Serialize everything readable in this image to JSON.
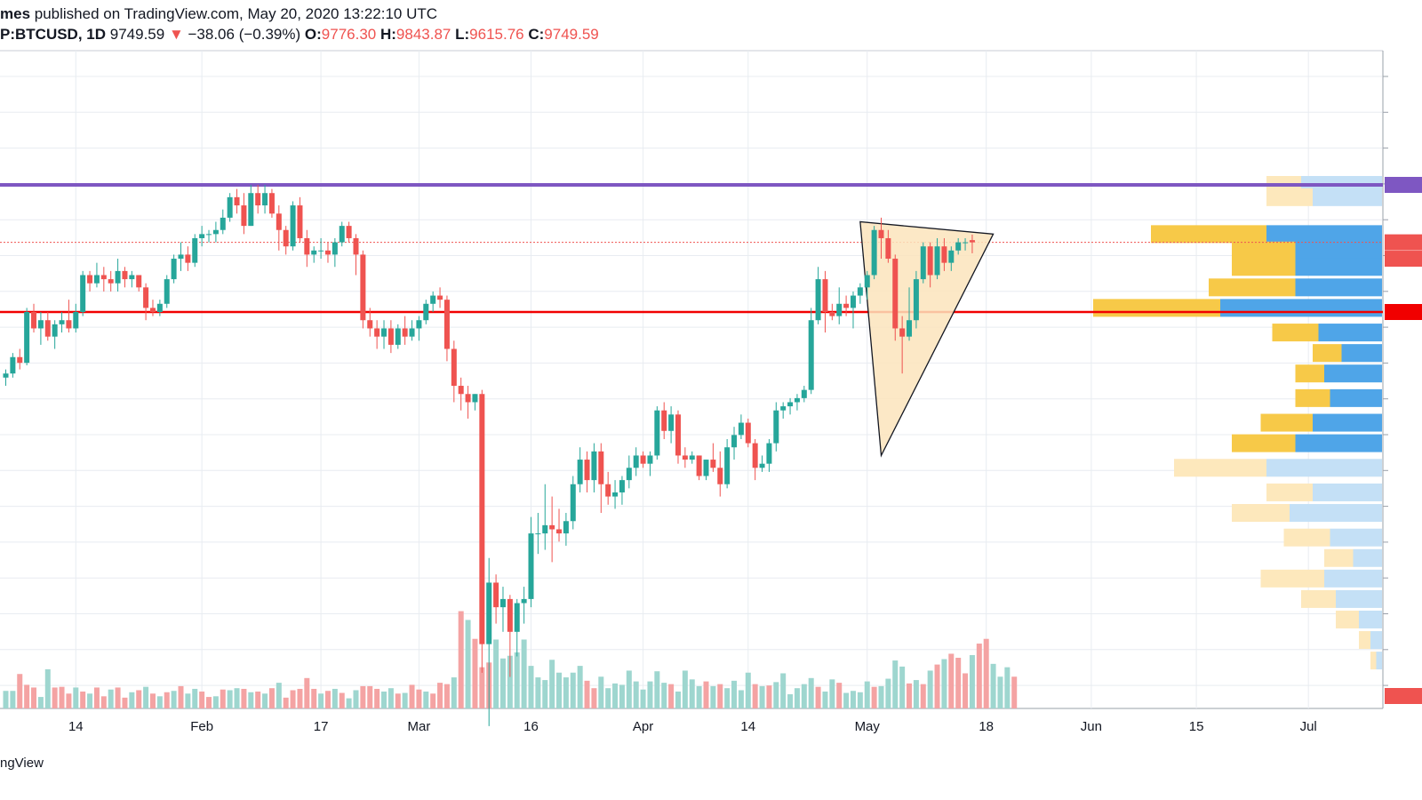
{
  "header": {
    "publisher_suffix": "mes",
    "published_text": " published on TradingView.com, May 20, 2020 13:22:10 UTC",
    "symbol_interval": "P:BTCUSD, 1D",
    "last_price": "9749.59",
    "change_arrow": "▼",
    "change": "−38.06 (−0.39%)",
    "open_label": "O:",
    "open": "9776.30",
    "high_label": "H:",
    "high": "9843.87",
    "low_label": "L:",
    "low": "9615.76",
    "close_label": "C:",
    "close": "9749.59"
  },
  "footer": {
    "brand": "ngView"
  },
  "colors": {
    "up": "#26a69a",
    "down": "#ef5350",
    "vol_up": "#9ed6cf",
    "vol_down": "#f4a3a3",
    "resistance": "#7e57c2",
    "support": "#f10000",
    "triangle_fill": "#fbe4bc",
    "grid": "#e8ecf1",
    "vp_up": "#f7c948",
    "vp_down": "#4fa5e8",
    "vp_up_light": "#fde8bc",
    "vp_down_light": "#c4e0f6"
  },
  "chart_data": {
    "type": "candlestick",
    "symbol": "BTCUSD",
    "interval": "1D",
    "x_tick_labels": [
      "14",
      "Feb",
      "17",
      "Mar",
      "16",
      "Apr",
      "14",
      "May",
      "18",
      "Jun",
      "15",
      "Jul"
    ],
    "y_range_approx": [
      3800,
      10600
    ],
    "grid": true,
    "candles_ohlc": [
      [
        8100,
        8200,
        8000,
        8150
      ],
      [
        8150,
        8400,
        8100,
        8350
      ],
      [
        8350,
        8450,
        8200,
        8280
      ],
      [
        8280,
        8950,
        8250,
        8900
      ],
      [
        8900,
        9000,
        8650,
        8700
      ],
      [
        8700,
        8900,
        8500,
        8800
      ],
      [
        8800,
        8900,
        8550,
        8600
      ],
      [
        8600,
        8800,
        8450,
        8750
      ],
      [
        8750,
        8900,
        8650,
        8800
      ],
      [
        8800,
        9050,
        8650,
        8700
      ],
      [
        8700,
        9000,
        8650,
        8900
      ],
      [
        8900,
        9400,
        8850,
        9350
      ],
      [
        9350,
        9400,
        9150,
        9250
      ],
      [
        9250,
        9500,
        9200,
        9350
      ],
      [
        9350,
        9450,
        9150,
        9300
      ],
      [
        9300,
        9400,
        9150,
        9250
      ],
      [
        9250,
        9550,
        9150,
        9400
      ],
      [
        9400,
        9450,
        9200,
        9300
      ],
      [
        9300,
        9400,
        9200,
        9350
      ],
      [
        9350,
        9350,
        9150,
        9200
      ],
      [
        9200,
        9250,
        8800,
        8950
      ],
      [
        8950,
        9050,
        8850,
        8900
      ],
      [
        8900,
        9050,
        8850,
        9000
      ],
      [
        9000,
        9350,
        8950,
        9300
      ],
      [
        9300,
        9600,
        9250,
        9550
      ],
      [
        9550,
        9750,
        9400,
        9600
      ],
      [
        9600,
        9700,
        9400,
        9500
      ],
      [
        9500,
        9850,
        9450,
        9800
      ],
      [
        9800,
        9950,
        9700,
        9850
      ],
      [
        9850,
        9900,
        9750,
        9850
      ],
      [
        9850,
        10000,
        9750,
        9900
      ],
      [
        9900,
        10150,
        9850,
        10050
      ],
      [
        10050,
        10350,
        10000,
        10300
      ],
      [
        10300,
        10400,
        10100,
        10200
      ],
      [
        10200,
        10350,
        9850,
        9950
      ],
      [
        9950,
        10450,
        9950,
        10350
      ],
      [
        10350,
        10450,
        10100,
        10200
      ],
      [
        10200,
        10450,
        10100,
        10350
      ],
      [
        10350,
        10400,
        10050,
        10100
      ],
      [
        10100,
        10200,
        9650,
        9900
      ],
      [
        9900,
        9950,
        9600,
        9700
      ],
      [
        9700,
        10250,
        9650,
        10200
      ],
      [
        10200,
        10300,
        9750,
        9800
      ],
      [
        9800,
        9900,
        9450,
        9600
      ],
      [
        9600,
        9700,
        9500,
        9650
      ],
      [
        9650,
        9800,
        9550,
        9650
      ],
      [
        9650,
        9750,
        9500,
        9600
      ],
      [
        9600,
        9800,
        9450,
        9750
      ],
      [
        9750,
        10000,
        9700,
        9950
      ],
      [
        9950,
        10000,
        9750,
        9800
      ],
      [
        9800,
        9850,
        9350,
        9600
      ],
      [
        9600,
        9650,
        8700,
        8800
      ],
      [
        8800,
        8950,
        8600,
        8700
      ],
      [
        8700,
        8800,
        8450,
        8600
      ],
      [
        8600,
        8800,
        8450,
        8700
      ],
      [
        8700,
        8800,
        8400,
        8500
      ],
      [
        8500,
        8750,
        8450,
        8700
      ],
      [
        8700,
        8850,
        8500,
        8600
      ],
      [
        8600,
        8800,
        8550,
        8700
      ],
      [
        8700,
        8850,
        8550,
        8800
      ],
      [
        8800,
        9050,
        8750,
        9000
      ],
      [
        9000,
        9150,
        8900,
        9100
      ],
      [
        9100,
        9200,
        8950,
        9050
      ],
      [
        9050,
        9100,
        8300,
        8450
      ],
      [
        8450,
        8550,
        7800,
        8000
      ],
      [
        8000,
        8100,
        7700,
        7900
      ],
      [
        7900,
        8000,
        7600,
        7800
      ],
      [
        7800,
        7900,
        7700,
        7900
      ],
      [
        7900,
        7950,
        4500,
        4850
      ],
      [
        4850,
        5900,
        3850,
        5600
      ],
      [
        5600,
        5700,
        5100,
        5300
      ],
      [
        5300,
        5550,
        5000,
        5400
      ],
      [
        5400,
        5450,
        4450,
        5000
      ],
      [
        5000,
        5400,
        4700,
        5350
      ],
      [
        5350,
        5550,
        5100,
        5400
      ],
      [
        5400,
        6400,
        5300,
        6200
      ],
      [
        6200,
        6450,
        5950,
        6200
      ],
      [
        6200,
        6800,
        6000,
        6300
      ],
      [
        6300,
        6650,
        5850,
        6250
      ],
      [
        6250,
        6500,
        6100,
        6200
      ],
      [
        6200,
        6450,
        6050,
        6350
      ],
      [
        6350,
        6900,
        6250,
        6800
      ],
      [
        6800,
        7250,
        6700,
        7100
      ],
      [
        7100,
        7200,
        6700,
        6850
      ],
      [
        6850,
        7300,
        6700,
        7200
      ],
      [
        7200,
        7300,
        6450,
        6800
      ],
      [
        6800,
        6950,
        6550,
        6650
      ],
      [
        6650,
        6850,
        6500,
        6700
      ],
      [
        6700,
        6900,
        6550,
        6850
      ],
      [
        6850,
        7150,
        6750,
        7000
      ],
      [
        7000,
        7250,
        6900,
        7150
      ],
      [
        7150,
        7200,
        7000,
        7050
      ],
      [
        7050,
        7200,
        6900,
        7150
      ],
      [
        7150,
        7750,
        7100,
        7700
      ],
      [
        7700,
        7800,
        7350,
        7450
      ],
      [
        7450,
        7750,
        7300,
        7650
      ],
      [
        7650,
        7700,
        7050,
        7150
      ],
      [
        7150,
        7250,
        7000,
        7100
      ],
      [
        7100,
        7200,
        7050,
        7150
      ],
      [
        7150,
        7150,
        6850,
        6900
      ],
      [
        6900,
        7100,
        6850,
        7100
      ],
      [
        7100,
        7300,
        6950,
        7000
      ],
      [
        7000,
        7200,
        6650,
        6800
      ],
      [
        6800,
        7350,
        6750,
        7250
      ],
      [
        7250,
        7500,
        7100,
        7400
      ],
      [
        7400,
        7650,
        7350,
        7550
      ],
      [
        7550,
        7600,
        7250,
        7300
      ],
      [
        7300,
        7350,
        6850,
        7000
      ],
      [
        7000,
        7150,
        6950,
        7050
      ],
      [
        7050,
        7350,
        6950,
        7300
      ],
      [
        7300,
        7800,
        7200,
        7700
      ],
      [
        7700,
        7800,
        7600,
        7750
      ],
      [
        7750,
        7850,
        7650,
        7800
      ],
      [
        7800,
        7900,
        7700,
        7850
      ],
      [
        7850,
        8000,
        7800,
        7950
      ],
      [
        7950,
        8950,
        7900,
        8800
      ],
      [
        8800,
        9450,
        8750,
        9300
      ],
      [
        9300,
        9400,
        8650,
        8900
      ],
      [
        8900,
        9000,
        8800,
        8850
      ],
      [
        8850,
        9200,
        8750,
        9000
      ],
      [
        9000,
        9100,
        8850,
        8950
      ],
      [
        8950,
        9150,
        8700,
        9100
      ],
      [
        9100,
        9250,
        9000,
        9200
      ],
      [
        9200,
        9400,
        9050,
        9350
      ],
      [
        9350,
        9950,
        9300,
        9900
      ],
      [
        9900,
        10050,
        9550,
        9800
      ],
      [
        9800,
        9900,
        9500,
        9550
      ],
      [
        9550,
        9600,
        8550,
        8700
      ],
      [
        8700,
        8850,
        8150,
        8600
      ],
      [
        8600,
        9200,
        8550,
        8800
      ],
      [
        8800,
        9400,
        8700,
        9300
      ],
      [
        9300,
        9750,
        9250,
        9700
      ],
      [
        9700,
        9750,
        9200,
        9350
      ],
      [
        9350,
        9800,
        9300,
        9700
      ],
      [
        9700,
        9800,
        9400,
        9500
      ],
      [
        9500,
        9700,
        9400,
        9650
      ],
      [
        9650,
        9800,
        9600,
        9750
      ],
      [
        9750,
        9800,
        9650,
        9750
      ],
      [
        9776.3,
        9843.87,
        9615.76,
        9749.59
      ]
    ],
    "volume": [
      [
        2.6,
        1
      ],
      [
        2.6,
        1
      ],
      [
        5.1,
        0
      ],
      [
        3.5,
        0
      ],
      [
        3.1,
        0
      ],
      [
        1.7,
        1
      ],
      [
        5.8,
        1
      ],
      [
        3.1,
        0
      ],
      [
        3.2,
        0
      ],
      [
        2.2,
        0
      ],
      [
        3.1,
        1
      ],
      [
        2.5,
        0
      ],
      [
        2.2,
        1
      ],
      [
        3.1,
        0
      ],
      [
        1.8,
        0
      ],
      [
        2.8,
        1
      ],
      [
        3.1,
        0
      ],
      [
        1.6,
        0
      ],
      [
        2.4,
        1
      ],
      [
        2.7,
        0
      ],
      [
        3.2,
        1
      ],
      [
        2.2,
        0
      ],
      [
        1.8,
        1
      ],
      [
        2.4,
        0
      ],
      [
        2.6,
        1
      ],
      [
        3.3,
        0
      ],
      [
        2.2,
        1
      ],
      [
        2.9,
        1
      ],
      [
        2.5,
        0
      ],
      [
        1.7,
        0
      ],
      [
        1.8,
        1
      ],
      [
        2.8,
        0
      ],
      [
        2.7,
        1
      ],
      [
        3.0,
        1
      ],
      [
        2.9,
        0
      ],
      [
        2.4,
        1
      ],
      [
        2.5,
        0
      ],
      [
        2.2,
        1
      ],
      [
        3.0,
        0
      ],
      [
        3.8,
        1
      ],
      [
        1.6,
        0
      ],
      [
        2.7,
        0
      ],
      [
        2.9,
        0
      ],
      [
        4.5,
        0
      ],
      [
        2.9,
        0
      ],
      [
        2.2,
        1
      ],
      [
        2.6,
        0
      ],
      [
        2.9,
        1
      ],
      [
        2.3,
        0
      ],
      [
        1.5,
        1
      ],
      [
        2.7,
        1
      ],
      [
        3.3,
        0
      ],
      [
        3.3,
        0
      ],
      [
        2.9,
        0
      ],
      [
        2.5,
        1
      ],
      [
        3.0,
        1
      ],
      [
        2.2,
        0
      ],
      [
        2.3,
        1
      ],
      [
        3.5,
        0
      ],
      [
        2.8,
        0
      ],
      [
        2.5,
        1
      ],
      [
        2.2,
        0
      ],
      [
        3.8,
        0
      ],
      [
        3.6,
        0
      ],
      [
        4.6,
        1
      ],
      [
        14.4,
        0
      ],
      [
        13.1,
        1
      ],
      [
        10.3,
        0
      ],
      [
        6.1,
        0
      ],
      [
        6.8,
        0
      ],
      [
        10.2,
        1
      ],
      [
        7.4,
        1
      ],
      [
        7.8,
        1
      ],
      [
        8.3,
        1
      ],
      [
        10.2,
        1
      ],
      [
        6.3,
        1
      ],
      [
        4.6,
        1
      ],
      [
        4.2,
        1
      ],
      [
        7.2,
        1
      ],
      [
        5.3,
        1
      ],
      [
        4.6,
        1
      ],
      [
        5.3,
        1
      ],
      [
        6.3,
        1
      ],
      [
        4.1,
        0
      ],
      [
        3.0,
        0
      ],
      [
        4.7,
        1
      ],
      [
        3.0,
        1
      ],
      [
        3.7,
        1
      ],
      [
        3.5,
        1
      ],
      [
        5.6,
        1
      ],
      [
        4.0,
        1
      ],
      [
        2.8,
        1
      ],
      [
        4.0,
        1
      ],
      [
        5.5,
        1
      ],
      [
        3.8,
        1
      ],
      [
        3.6,
        0
      ],
      [
        2.5,
        1
      ],
      [
        5.6,
        1
      ],
      [
        4.3,
        1
      ],
      [
        3.3,
        1
      ],
      [
        4.0,
        0
      ],
      [
        3.3,
        1
      ],
      [
        3.6,
        0
      ],
      [
        3.0,
        1
      ],
      [
        4.1,
        1
      ],
      [
        2.7,
        1
      ],
      [
        5.3,
        1
      ],
      [
        3.6,
        0
      ],
      [
        3.3,
        1
      ],
      [
        3.4,
        0
      ],
      [
        3.9,
        1
      ],
      [
        5.2,
        1
      ],
      [
        2.1,
        1
      ],
      [
        3.0,
        1
      ],
      [
        3.6,
        1
      ],
      [
        4.5,
        1
      ],
      [
        3.2,
        0
      ],
      [
        2.5,
        1
      ],
      [
        4.3,
        1
      ],
      [
        3.8,
        0
      ],
      [
        2.3,
        1
      ],
      [
        2.6,
        1
      ],
      [
        2.4,
        1
      ],
      [
        4.0,
        1
      ],
      [
        3.2,
        0
      ],
      [
        3.3,
        1
      ],
      [
        4.4,
        1
      ],
      [
        7.1,
        1
      ],
      [
        6.2,
        1
      ],
      [
        3.7,
        0
      ],
      [
        4.2,
        1
      ],
      [
        3.6,
        0
      ],
      [
        5.6,
        1
      ],
      [
        6.5,
        0
      ],
      [
        7.3,
        1
      ],
      [
        8.1,
        0
      ],
      [
        7.5,
        0
      ],
      [
        5.2,
        0
      ],
      [
        7.9,
        1
      ],
      [
        9.6,
        0
      ],
      [
        10.3,
        0
      ],
      [
        6.6,
        1
      ],
      [
        4.7,
        1
      ],
      [
        6.1,
        1
      ],
      [
        4.7,
        0
      ]
    ],
    "resistance_level": 10450,
    "support_level": 8900,
    "current_price_line": 9749.59,
    "pattern": "symmetrical triangle",
    "triangle_vertices": [
      [
        122,
        10000
      ],
      [
        125,
        7150
      ],
      [
        141,
        9850
      ]
    ],
    "volume_profile": [
      [
        10450,
        0.3,
        0.7,
        1
      ],
      [
        10300,
        0.4,
        0.6,
        1
      ],
      [
        9850,
        1.0,
        1.0,
        0
      ],
      [
        9650,
        0.55,
        0.75,
        0
      ],
      [
        9450,
        0.55,
        0.75,
        0
      ],
      [
        9200,
        0.75,
        0.75,
        0
      ],
      [
        8950,
        1.1,
        1.4,
        0
      ],
      [
        8650,
        0.4,
        0.55,
        0
      ],
      [
        8400,
        0.25,
        0.35,
        0
      ],
      [
        8150,
        0.25,
        0.5,
        0
      ],
      [
        7850,
        0.3,
        0.45,
        0
      ],
      [
        7550,
        0.45,
        0.6,
        0
      ],
      [
        7300,
        0.55,
        0.75,
        0
      ],
      [
        7000,
        0.8,
        1.0,
        1
      ],
      [
        6700,
        0.4,
        0.6,
        1
      ],
      [
        6450,
        0.5,
        0.8,
        1
      ],
      [
        6150,
        0.4,
        0.45,
        1
      ],
      [
        5900,
        0.25,
        0.25,
        1
      ],
      [
        5650,
        0.55,
        0.5,
        1
      ],
      [
        5400,
        0.3,
        0.4,
        1
      ],
      [
        5150,
        0.2,
        0.2,
        1
      ],
      [
        4900,
        0.1,
        0.1,
        1
      ],
      [
        4650,
        0.05,
        0.05,
        1
      ]
    ]
  }
}
